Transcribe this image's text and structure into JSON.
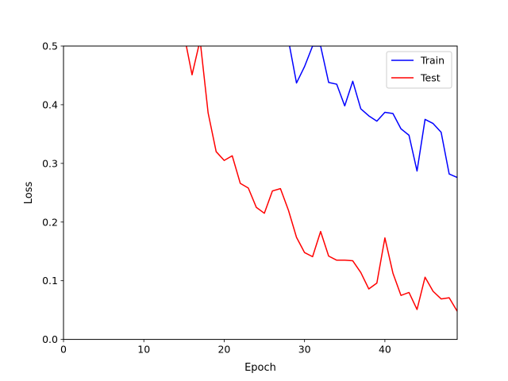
{
  "chart_data": {
    "type": "line",
    "title": "",
    "xlabel": "Epoch",
    "ylabel": "Loss",
    "xlim": [
      0,
      49
    ],
    "ylim": [
      0,
      0.5
    ],
    "x_ticks": [
      0,
      10,
      20,
      30,
      40
    ],
    "y_ticks": [
      0.0,
      0.1,
      0.2,
      0.3,
      0.4,
      0.5
    ],
    "x_tick_labels": [
      "0",
      "10",
      "20",
      "30",
      "40"
    ],
    "y_tick_labels": [
      "0.0",
      "0.1",
      "0.2",
      "0.3",
      "0.4",
      "0.5"
    ],
    "grid": false,
    "legend_position": "top-right",
    "series": [
      {
        "name": "Train",
        "color": "#0000ff",
        "x": [
          28,
          29,
          30,
          31,
          32,
          33,
          34,
          35,
          36,
          37,
          38,
          39,
          40,
          41,
          42,
          43,
          44,
          45,
          46,
          47,
          48,
          49
        ],
        "values": [
          0.51,
          0.437,
          0.465,
          0.5,
          0.5,
          0.438,
          0.435,
          0.398,
          0.44,
          0.393,
          0.381,
          0.372,
          0.387,
          0.385,
          0.359,
          0.348,
          0.287,
          0.375,
          0.368,
          0.353,
          0.282,
          0.276
        ]
      },
      {
        "name": "Test",
        "color": "#ff0000",
        "x": [
          15,
          16,
          17,
          18,
          19,
          20,
          21,
          22,
          23,
          24,
          25,
          26,
          27,
          28,
          29,
          30,
          31,
          32,
          33,
          34,
          35,
          36,
          37,
          38,
          39,
          40,
          41,
          42,
          43,
          44,
          45,
          46,
          47,
          48,
          49
        ],
        "values": [
          0.52,
          0.451,
          0.51,
          0.386,
          0.32,
          0.305,
          0.313,
          0.266,
          0.258,
          0.225,
          0.215,
          0.253,
          0.257,
          0.22,
          0.174,
          0.148,
          0.141,
          0.184,
          0.142,
          0.135,
          0.135,
          0.134,
          0.114,
          0.086,
          0.096,
          0.173,
          0.113,
          0.075,
          0.08,
          0.051,
          0.106,
          0.082,
          0.069,
          0.071,
          0.048
        ]
      }
    ]
  }
}
